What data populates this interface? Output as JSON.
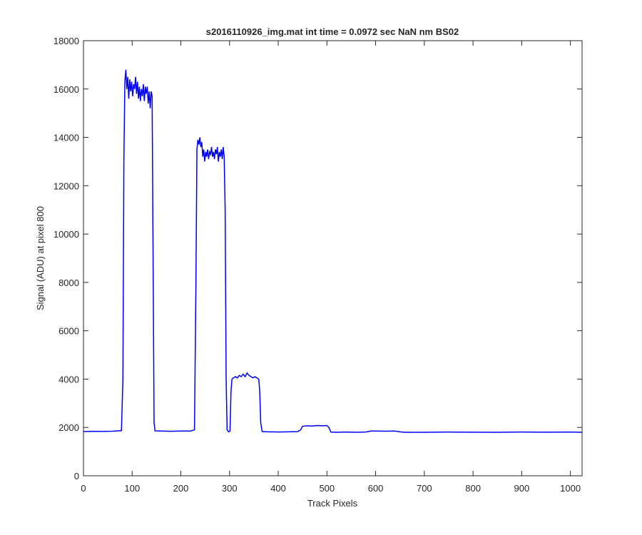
{
  "chart_data": {
    "type": "line",
    "title": "s2016110926_img.mat int time = 0.0972 sec  NaN nm BS02",
    "xlabel": "Track Pixels",
    "ylabel": "Signal (ADU) at pixel 800",
    "color": "#0000ff",
    "xlim": [
      0,
      1024
    ],
    "ylim": [
      0,
      18000
    ],
    "xticks": [
      0,
      100,
      200,
      300,
      400,
      500,
      600,
      700,
      800,
      900,
      1000
    ],
    "yticks": [
      0,
      2000,
      4000,
      6000,
      8000,
      10000,
      12000,
      14000,
      16000,
      18000
    ],
    "x": [
      0,
      20,
      40,
      60,
      78,
      81,
      83,
      85,
      87,
      89,
      91,
      93,
      95,
      97,
      99,
      101,
      103,
      105,
      107,
      109,
      111,
      113,
      115,
      117,
      119,
      121,
      123,
      125,
      127,
      129,
      131,
      133,
      135,
      137,
      139,
      141,
      143,
      145,
      147,
      160,
      180,
      200,
      220,
      228,
      231,
      233,
      235,
      237,
      239,
      241,
      243,
      245,
      247,
      249,
      251,
      253,
      255,
      257,
      259,
      261,
      263,
      265,
      267,
      269,
      271,
      273,
      275,
      277,
      279,
      281,
      283,
      285,
      287,
      289,
      291,
      293,
      295,
      298,
      301,
      303,
      305,
      308,
      312,
      316,
      320,
      324,
      328,
      332,
      336,
      340,
      344,
      348,
      352,
      356,
      360,
      362,
      364,
      367,
      380,
      400,
      420,
      440,
      446,
      450,
      460,
      470,
      480,
      490,
      500,
      504,
      508,
      520,
      540,
      560,
      580,
      590,
      600,
      620,
      640,
      650,
      660,
      700,
      750,
      800,
      850,
      900,
      950,
      1000,
      1024
    ],
    "values": [
      1830,
      1840,
      1835,
      1845,
      1870,
      4000,
      13000,
      16300,
      16800,
      16000,
      16500,
      15600,
      16400,
      15900,
      16300,
      15700,
      16200,
      16000,
      16500,
      15800,
      16300,
      15600,
      16100,
      15500,
      16000,
      15700,
      16200,
      15500,
      16100,
      15800,
      16100,
      15400,
      15900,
      15200,
      15900,
      15700,
      9000,
      2200,
      1860,
      1850,
      1840,
      1850,
      1850,
      1900,
      8000,
      13500,
      13900,
      13700,
      14000,
      13600,
      13800,
      13200,
      13500,
      13000,
      13400,
      13200,
      13500,
      13100,
      13400,
      13300,
      13600,
      13200,
      13400,
      13100,
      13500,
      13300,
      13600,
      13000,
      13400,
      13200,
      13500,
      13100,
      13600,
      13200,
      11000,
      4000,
      1900,
      1820,
      1850,
      3500,
      4000,
      4050,
      4100,
      4050,
      4150,
      4100,
      4200,
      4100,
      4250,
      4150,
      4100,
      4050,
      4100,
      4050,
      4000,
      3500,
      2200,
      1830,
      1820,
      1810,
      1820,
      1830,
      1900,
      2050,
      2070,
      2060,
      2080,
      2070,
      2080,
      2000,
      1810,
      1800,
      1810,
      1800,
      1810,
      1850,
      1850,
      1845,
      1850,
      1820,
      1800,
      1800,
      1810,
      1805,
      1800,
      1810,
      1805,
      1810,
      1800
    ]
  }
}
